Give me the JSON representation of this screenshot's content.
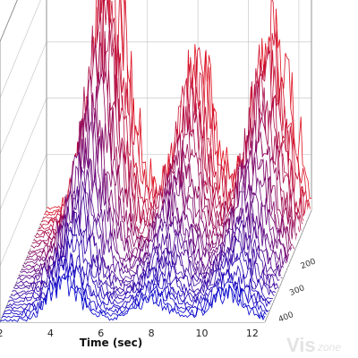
{
  "chart_data": {
    "type": "line",
    "subtype": "3d-waterfall",
    "title": "",
    "xlabel": "Time (sec)",
    "x_ticks": [
      "2",
      "4",
      "6",
      "8",
      "10",
      "12"
    ],
    "xlim": [
      2,
      12.5
    ],
    "depth_ticks": [
      "200",
      "300",
      "400"
    ],
    "depth_range": [
      1,
      420
    ],
    "grid": true,
    "trace_count": 36,
    "color_front": "#0000cc",
    "color_back": "#e0101e",
    "peak_times_sec": [
      4.6,
      8.0,
      11.0
    ],
    "peak_heights": [
      0.95,
      0.55,
      0.68
    ]
  },
  "watermark": {
    "main": "Vis",
    "sub": "zone"
  }
}
